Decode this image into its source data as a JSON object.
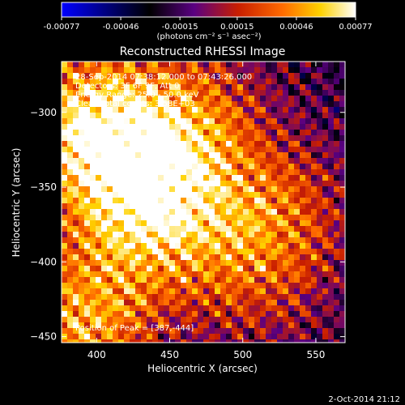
{
  "colorbar": {
    "tick_labels": [
      "-0.00077",
      "-0.00046",
      "-0.00015",
      "0.00015",
      "0.00046",
      "0.00077"
    ],
    "tick_values": [
      -0.00077,
      -0.00046,
      -0.00015,
      0.00015,
      0.00046,
      0.00077
    ],
    "units": "(photons cm⁻² s⁻¹ asec⁻²)",
    "colors": [
      "#0000ff",
      "#000000",
      "#5a0082",
      "#c81e00",
      "#ff6a00",
      "#ffd200",
      "#ffffff"
    ]
  },
  "annotations": {
    "time_range": "28-Sep-2014 07:38:12.000 to 07:43:26.000",
    "detectors": "Detectors: 3F 6F 9F, Att 0",
    "energy_range": "Energy Range: 25.0 - 50.0 keV",
    "clean": "Clean    Total counts: 3.58E+03",
    "peak": "Position of Peak = [387,-444]"
  },
  "footer": {
    "timestamp": "2-Oct-2014 21:12"
  },
  "chart_data": {
    "type": "heatmap",
    "title": "Reconstructed RHESSI Image",
    "xlabel": "Heliocentric X (arcsec)",
    "ylabel": "Heliocentric Y (arcsec)",
    "xlim": [
      376,
      570
    ],
    "ylim": [
      -454,
      -266
    ],
    "xticks": [
      400,
      450,
      500,
      550
    ],
    "yticks": [
      -300,
      -350,
      -400,
      -450
    ],
    "xtick_labels": [
      "400",
      "450",
      "500",
      "550"
    ],
    "ytick_labels": [
      "−300",
      "−350",
      "−400",
      "−450"
    ],
    "grid": false,
    "colormap": "blue-black-purple-red-orange-yellow-white",
    "value_range": [
      -0.00077,
      0.00077
    ],
    "peak_position": [
      387,
      -444
    ],
    "bright_regions": [
      {
        "x": 385,
        "y": -300,
        "intensity": "high"
      },
      {
        "x": 440,
        "y": -370,
        "intensity": "high"
      },
      {
        "x": 420,
        "y": -330,
        "intensity": "high"
      },
      {
        "x": 510,
        "y": -380,
        "intensity": "medium"
      },
      {
        "x": 470,
        "y": -300,
        "intensity": "medium"
      },
      {
        "x": 387,
        "y": -444,
        "intensity": "peak"
      }
    ],
    "faint_regions": [
      {
        "x": 540,
        "y": -360,
        "intensity": "low"
      },
      {
        "x": 510,
        "y": -430,
        "intensity": "low"
      }
    ]
  }
}
